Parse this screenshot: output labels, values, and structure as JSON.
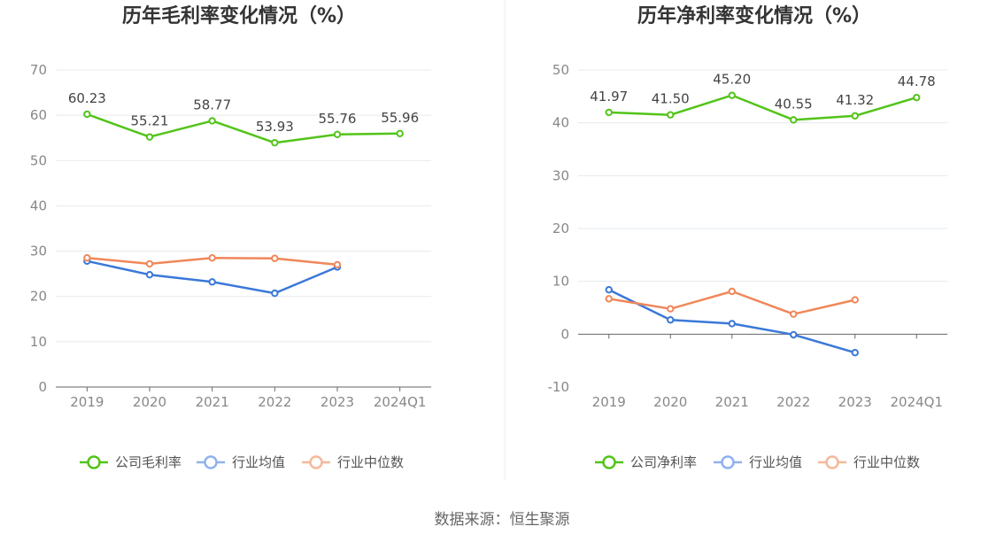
{
  "chart_data": [
    {
      "type": "line",
      "title": "历年毛利率变化情况（%）",
      "categories": [
        "2019",
        "2020",
        "2021",
        "2022",
        "2023",
        "2024Q1"
      ],
      "ylim": [
        0,
        70
      ],
      "yticks": [
        "0",
        "10",
        "20",
        "30",
        "40",
        "50",
        "60",
        "70"
      ],
      "grid": true,
      "legend_position": "bottom",
      "series": [
        {
          "name": "公司毛利率",
          "color": "#52c41a",
          "values": [
            60.23,
            55.21,
            58.77,
            53.93,
            55.76,
            55.96
          ],
          "labels": [
            "60.23",
            "55.21",
            "58.77",
            "53.93",
            "55.76",
            "55.96"
          ]
        },
        {
          "name": "行业均值",
          "color": "#3a78d8",
          "legend_color": "#8fb2ee",
          "values": [
            27.8,
            24.8,
            23.2,
            20.7,
            26.5,
            null
          ]
        },
        {
          "name": "行业中位数",
          "color": "#f0875a",
          "legend_color": "#f6b89b",
          "values": [
            28.5,
            27.2,
            28.5,
            28.4,
            27.0,
            null
          ]
        }
      ]
    },
    {
      "type": "line",
      "title": "历年净利率变化情况（%）",
      "categories": [
        "2019",
        "2020",
        "2021",
        "2022",
        "2023",
        "2024Q1"
      ],
      "ylim": [
        -10,
        50
      ],
      "yticks": [
        "-10",
        "0",
        "10",
        "20",
        "30",
        "40",
        "50"
      ],
      "grid": true,
      "legend_position": "bottom",
      "series": [
        {
          "name": "公司净利率",
          "color": "#52c41a",
          "values": [
            41.97,
            41.5,
            45.2,
            40.55,
            41.32,
            44.78
          ],
          "labels": [
            "41.97",
            "41.50",
            "45.20",
            "40.55",
            "41.32",
            "44.78"
          ]
        },
        {
          "name": "行业均值",
          "color": "#3a78d8",
          "legend_color": "#8fb2ee",
          "values": [
            8.4,
            2.7,
            2.0,
            -0.1,
            -3.5,
            null
          ]
        },
        {
          "name": "行业中位数",
          "color": "#f0875a",
          "legend_color": "#f6b89b",
          "values": [
            6.7,
            4.8,
            8.1,
            3.8,
            6.5,
            null
          ]
        }
      ]
    }
  ],
  "source": "数据来源：恒生聚源"
}
